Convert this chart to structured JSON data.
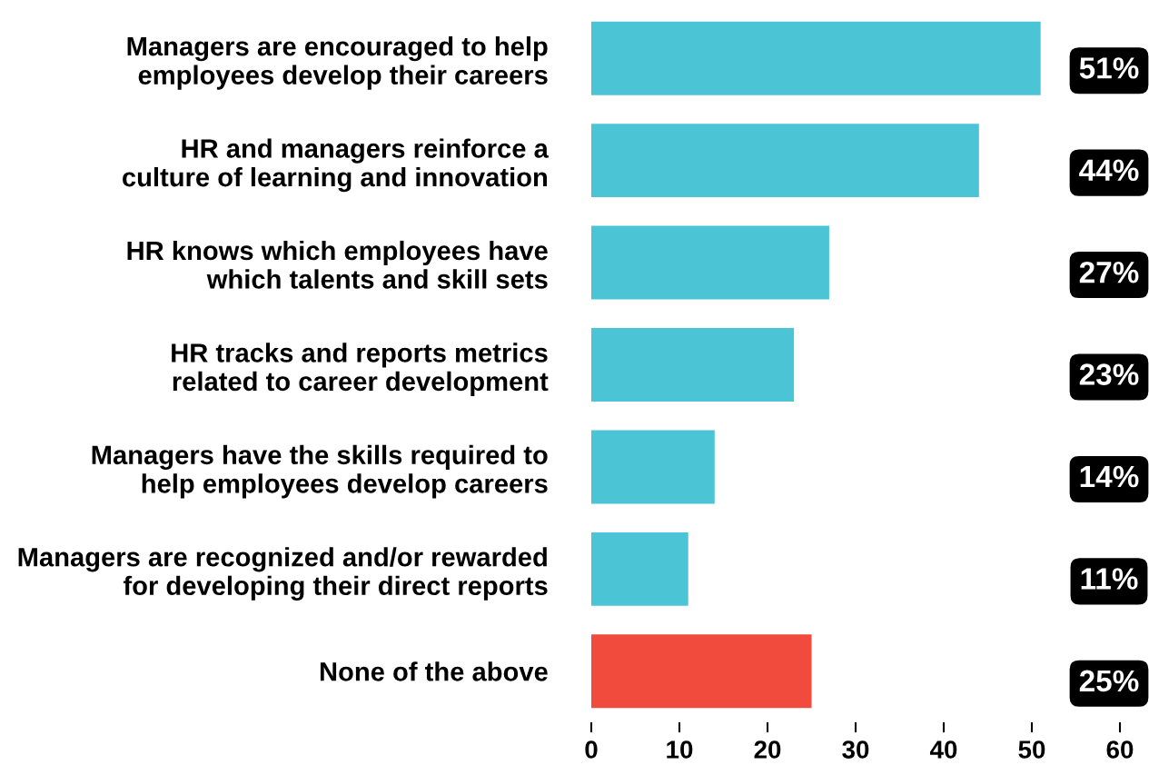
{
  "chart_data": {
    "type": "bar",
    "orientation": "horizontal",
    "categories": [
      "Managers are encouraged to help\nemployees develop their careers",
      "HR and managers reinforce a\nculture of learning and innovation",
      "HR knows which employees have\nwhich talents and skill sets",
      "HR tracks and reports metrics\nrelated to career development",
      "Managers have the skills required to\nhelp employees develop careers",
      "Managers are recognized and/or rewarded\nfor developing their direct reports",
      "None of the above"
    ],
    "values": [
      51,
      44,
      27,
      23,
      14,
      11,
      25
    ],
    "colors": [
      "#4bc4d6",
      "#4bc4d6",
      "#4bc4d6",
      "#4bc4d6",
      "#4bc4d6",
      "#4bc4d6",
      "#f04b3d"
    ],
    "value_labels": [
      "51%",
      "44%",
      "27%",
      "23%",
      "14%",
      "11%",
      "25%"
    ],
    "xlim": [
      0,
      60
    ],
    "xticks": [
      0,
      10,
      20,
      30,
      40,
      50,
      60
    ],
    "grid": false,
    "legend": false
  }
}
